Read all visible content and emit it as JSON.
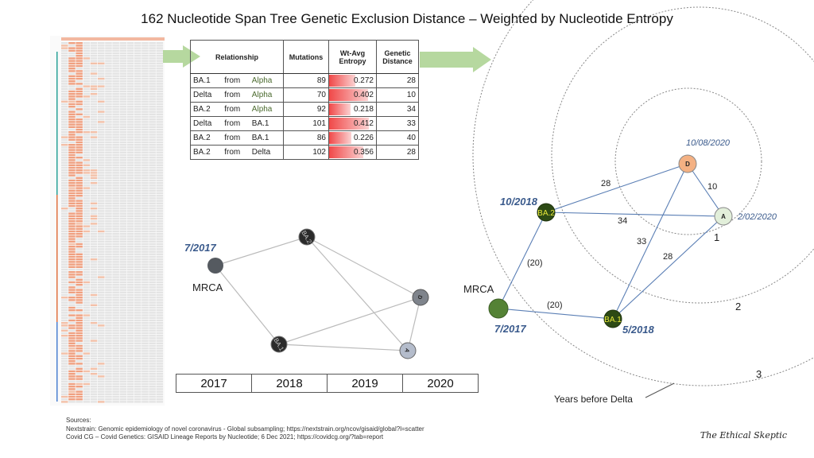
{
  "title": "162 Nucleotide Span Tree Genetic Exclusion Distance – Weighted by Nucleotide Entropy",
  "table": {
    "headers": [
      "Relationship",
      "Mutations",
      "Wt-Avg Entropy",
      "Genetic Distance"
    ],
    "rows": [
      {
        "to": "BA.1",
        "from_word": "from",
        "from": "Alpha",
        "mutations": "89",
        "entropy": "0.272",
        "distance": "28",
        "entropy_value": 0.272
      },
      {
        "to": "Delta",
        "from_word": "from",
        "from": "Alpha",
        "mutations": "70",
        "entropy": "0.402",
        "distance": "10",
        "entropy_value": 0.402
      },
      {
        "to": "BA.2",
        "from_word": "from",
        "from": "Alpha",
        "mutations": "92",
        "entropy": "0.218",
        "distance": "34",
        "entropy_value": 0.218
      },
      {
        "to": "Delta",
        "from_word": "from",
        "from": "BA.1",
        "mutations": "101",
        "entropy": "0.412",
        "distance": "33",
        "entropy_value": 0.412
      },
      {
        "to": "BA.2",
        "from_word": "from",
        "from": "BA.1",
        "mutations": "86",
        "entropy": "0.226",
        "distance": "40",
        "entropy_value": 0.226
      },
      {
        "to": "BA.2",
        "from_word": "from",
        "from": "Delta",
        "mutations": "102",
        "entropy": "0.356",
        "distance": "28",
        "entropy_value": 0.356
      }
    ]
  },
  "timeline_graph": {
    "mrca_label": "MRCA",
    "mrca_date": "7/2017",
    "nodes": {
      "ba2": "BA.2",
      "ba1": "BA.1",
      "d": "D",
      "a": "A"
    },
    "years": [
      "2017",
      "2018",
      "2019",
      "2020"
    ]
  },
  "distance_graph": {
    "mrca_label": "MRCA",
    "nodes": {
      "ba2": "BA.2",
      "ba1": "BA.1",
      "d": "D",
      "a": "A"
    },
    "dates": {
      "ba2": "10/2018",
      "ba1": "5/2018",
      "d": "10/08/2020",
      "a": "2/02/2020",
      "mrca": "7/2017"
    },
    "edges": {
      "ba2_d": "28",
      "d_a": "10",
      "ba2_a": "34",
      "ba1_d": "33",
      "ba1_a": "28",
      "mrca_ba2": "(20)",
      "mrca_ba1": "(20)"
    },
    "rings": [
      "1",
      "2",
      "3"
    ],
    "ring_caption": "Years before Delta"
  },
  "sources": {
    "heading": "Sources:",
    "lines": [
      "Nextstrain: Genomic epidemiology of novel coronavirus - Global subsampling; https://nextstrain.org/ncov/gisaid/global?l=scatter",
      "Covid CG – Covid Genetics: GISAID Lineage Reports by Nucleotide; 6 Dec 2021; https://covidcg.org/?tab=report"
    ]
  },
  "brand": "The Ethical Skeptic",
  "colors": {
    "arrow": "#a9d18e",
    "edge": "#5b7fb5",
    "date": "#3a5a8c",
    "delta": "#f4b183",
    "alpha": "#e2efda",
    "omicron": "#2d4a14",
    "mrca": "#548235"
  }
}
